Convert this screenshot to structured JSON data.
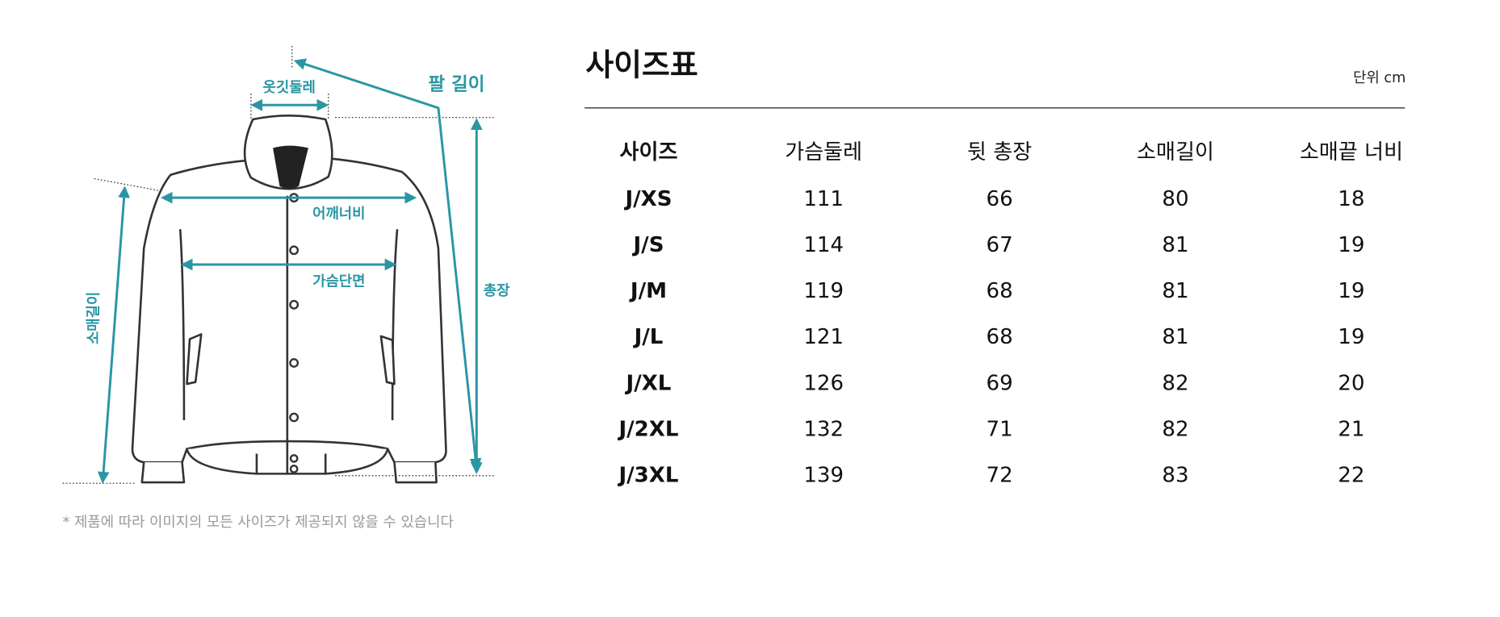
{
  "diagram": {
    "labels": {
      "collar": "옷깃둘레",
      "arm_length": "팔 길이",
      "shoulder": "어깨너비",
      "chest": "가슴단면",
      "sleeve": "소매길이",
      "total": "총장"
    },
    "note": "* 제품에 따라 이미지의 모든 사이즈가 제공되지 않을 수 있습니다"
  },
  "table": {
    "title": "사이즈표",
    "unit": "단위 cm",
    "header": [
      "사이즈",
      "가슴둘레",
      "뒷 총장",
      "소매길이",
      "소매끝 너비"
    ],
    "rows": [
      [
        "J/XS",
        111,
        66,
        80,
        18
      ],
      [
        "J/S",
        114,
        67,
        81,
        19
      ],
      [
        "J/M",
        119,
        68,
        81,
        19
      ],
      [
        "J/L",
        121,
        68,
        81,
        19
      ],
      [
        "J/XL",
        126,
        69,
        82,
        20
      ],
      [
        "J/2XL",
        132,
        71,
        82,
        21
      ],
      [
        "J/3XL",
        139,
        72,
        83,
        22
      ]
    ]
  }
}
